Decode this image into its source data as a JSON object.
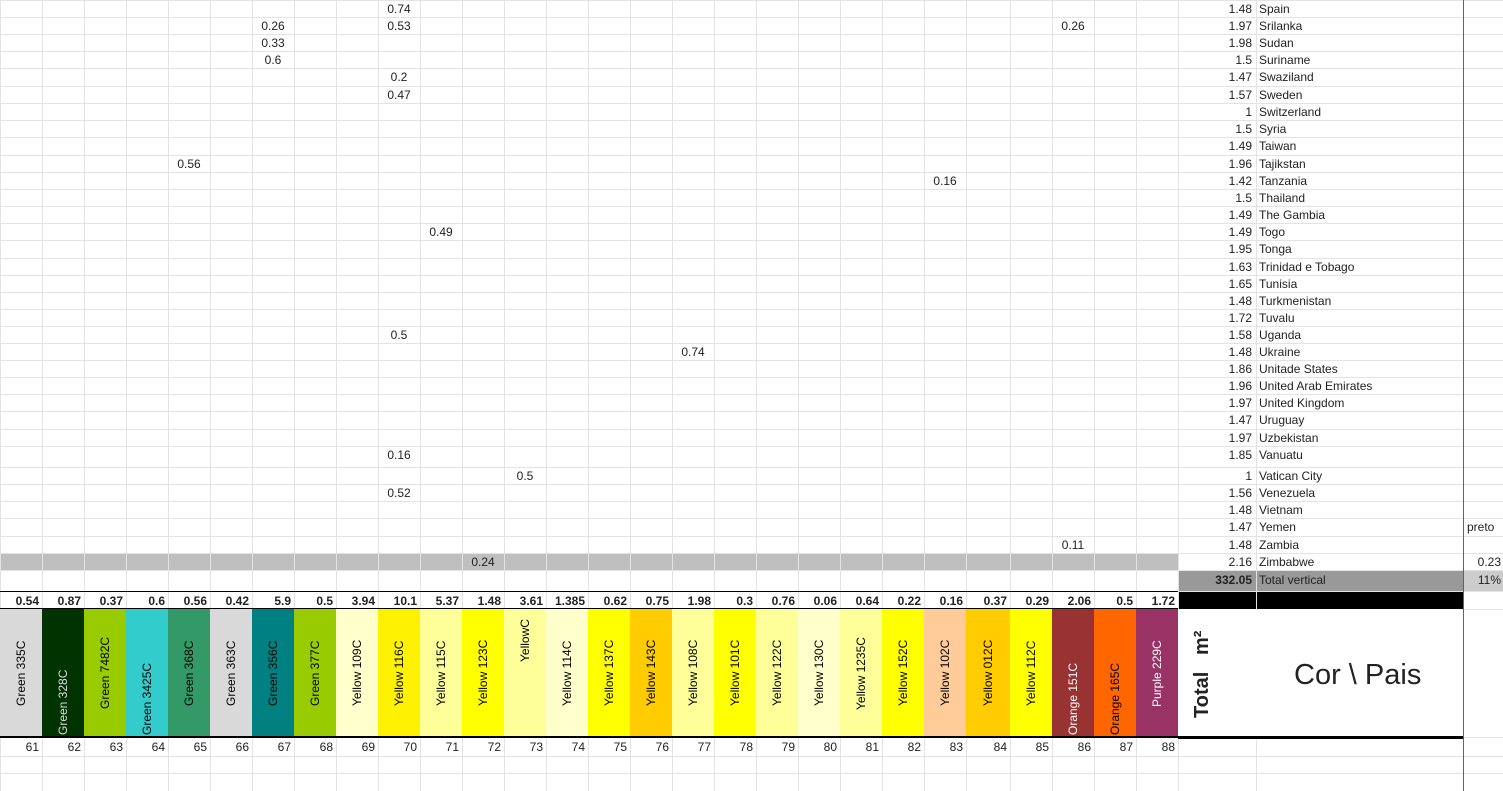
{
  "col_bounds": [
    0,
    42,
    84,
    126,
    168,
    210,
    252,
    294,
    336,
    378,
    420,
    462,
    504,
    546,
    588,
    630,
    672,
    714,
    756,
    798,
    840,
    882,
    924,
    966,
    1010,
    1052,
    1094,
    1136,
    1178,
    1256,
    1463,
    1503
  ],
  "row_bounds": [
    0,
    17,
    34,
    51,
    68,
    86,
    103,
    120,
    137,
    155,
    172,
    189,
    206,
    223,
    240,
    258,
    275,
    292,
    309,
    326,
    343,
    360,
    377,
    394,
    411,
    429,
    446,
    467,
    484,
    501,
    518,
    536,
    553,
    570,
    591,
    609,
    737,
    756,
    773,
    791
  ],
  "countries": [
    {
      "value": "1.48",
      "name": "Spain"
    },
    {
      "value": "1.97",
      "name": "Srilanka"
    },
    {
      "value": "1.98",
      "name": "Sudan"
    },
    {
      "value": "1.5",
      "name": "Suriname"
    },
    {
      "value": "1.47",
      "name": "Swaziland"
    },
    {
      "value": "1.57",
      "name": "Sweden"
    },
    {
      "value": "1",
      "name": "Switzerland"
    },
    {
      "value": "1.5",
      "name": "Syria"
    },
    {
      "value": "1.49",
      "name": "Taiwan"
    },
    {
      "value": "1.96",
      "name": "Tajikstan"
    },
    {
      "value": "1.42",
      "name": "Tanzania"
    },
    {
      "value": "1.5",
      "name": "Thailand"
    },
    {
      "value": "1.49",
      "name": "The Gambia"
    },
    {
      "value": "1.49",
      "name": "Togo"
    },
    {
      "value": "1.95",
      "name": "Tonga"
    },
    {
      "value": "1.63",
      "name": "Trinidad e Tobago"
    },
    {
      "value": "1.65",
      "name": "Tunisia"
    },
    {
      "value": "1.48",
      "name": "Turkmenistan"
    },
    {
      "value": "1.72",
      "name": "Tuvalu"
    },
    {
      "value": "1.58",
      "name": "Uganda"
    },
    {
      "value": "1.48",
      "name": "Ukraine"
    },
    {
      "value": "1.86",
      "name": "Unitade States"
    },
    {
      "value": "1.96",
      "name": "United Arab Emirates"
    },
    {
      "value": "1.97",
      "name": "United Kingdom"
    },
    {
      "value": "1.47",
      "name": "Uruguay"
    },
    {
      "value": "1.97",
      "name": "Uzbekistan"
    },
    {
      "value": "1.85",
      "name": "Vanuatu"
    },
    {
      "value": "1",
      "name": "Vatican City"
    },
    {
      "value": "1.56",
      "name": "Venezuela"
    },
    {
      "value": "1.48",
      "name": "Vietnam"
    },
    {
      "value": "1.47",
      "name": "Yemen"
    },
    {
      "value": "1.48",
      "name": "Zambia"
    },
    {
      "value": "2.16",
      "name": "Zimbabwe"
    }
  ],
  "scattered": [
    {
      "row": 0,
      "col": 9,
      "text": "0.74"
    },
    {
      "row": 1,
      "col": 6,
      "text": "0.26"
    },
    {
      "row": 1,
      "col": 9,
      "text": "0.53"
    },
    {
      "row": 1,
      "col": 25,
      "text": "0.26"
    },
    {
      "row": 2,
      "col": 6,
      "text": "0.33"
    },
    {
      "row": 3,
      "col": 6,
      "text": "0.6"
    },
    {
      "row": 4,
      "col": 9,
      "text": "0.2"
    },
    {
      "row": 5,
      "col": 9,
      "text": "0.47"
    },
    {
      "row": 9,
      "col": 4,
      "text": "0.56"
    },
    {
      "row": 10,
      "col": 22,
      "text": "0.16"
    },
    {
      "row": 13,
      "col": 10,
      "text": "0.49"
    },
    {
      "row": 19,
      "col": 9,
      "text": "0.5"
    },
    {
      "row": 20,
      "col": 16,
      "text": "0.74"
    },
    {
      "row": 26,
      "col": 9,
      "text": "0.16"
    },
    {
      "row": 27,
      "col": 12,
      "text": "0.5"
    },
    {
      "row": 28,
      "col": 9,
      "text": "0.52"
    },
    {
      "row": 31,
      "col": 25,
      "text": "0.11"
    },
    {
      "row": 32,
      "col": 11,
      "text": "0.24"
    }
  ],
  "yemen_extra": "preto",
  "zimbabwe_extra": "0.23",
  "total_vertical": {
    "value": "332.05",
    "label": "Total vertical",
    "percent": "11%"
  },
  "totals_row": [
    "0.54",
    "0.87",
    "0.37",
    "0.6",
    "0.56",
    "0.42",
    "5.9",
    "0.5",
    "3.94",
    "10.1",
    "5.37",
    "1.48",
    "3.61",
    "1.385",
    "0.62",
    "0.75",
    "1.98",
    "0.3",
    "0.76",
    "0.06",
    "0.64",
    "0.22",
    "0.16",
    "0.37",
    "0.29",
    "2.06",
    "0.5",
    "1.72"
  ],
  "color_columns": [
    {
      "label": "Green 335C",
      "bg": "#d9d9d9",
      "fg": "#000000",
      "pos": "mid"
    },
    {
      "label": "Green 328C",
      "bg": "#003300",
      "fg": "#dddddd",
      "pos": "bottom"
    },
    {
      "label": "Green 7482C",
      "bg": "#99cc00",
      "fg": "#000000",
      "pos": "mid"
    },
    {
      "label": "Green 3425C",
      "bg": "#33cccc",
      "fg": "#000000",
      "pos": "bottom"
    },
    {
      "label": "Green 368C",
      "bg": "#339966",
      "fg": "#000000",
      "pos": "mid"
    },
    {
      "label": "Green 363C",
      "bg": "#d9d9d9",
      "fg": "#000000",
      "pos": "mid"
    },
    {
      "label": "Green 356C",
      "bg": "#008080",
      "fg": "#000000",
      "pos": "mid"
    },
    {
      "label": "Green 377C",
      "bg": "#99cc00",
      "fg": "#000000",
      "pos": "mid"
    },
    {
      "label": "Yellow 109C",
      "bg": "#ffffcc",
      "fg": "#000000",
      "pos": "mid"
    },
    {
      "label": "Yellow 116C",
      "bg": "#fff200",
      "fg": "#000000",
      "pos": "mid"
    },
    {
      "label": "Yellow 115C",
      "bg": "#ffff99",
      "fg": "#000000",
      "pos": "mid"
    },
    {
      "label": "Yellow 123C",
      "bg": "#ffff00",
      "fg": "#000000",
      "pos": "mid"
    },
    {
      "label": "YellowC",
      "bg": "#ffff99",
      "fg": "#000000",
      "pos": "top"
    },
    {
      "label": "Yellow 114C",
      "bg": "#ffffcc",
      "fg": "#000000",
      "pos": "mid"
    },
    {
      "label": "Yellow 137C",
      "bg": "#ffff00",
      "fg": "#000000",
      "pos": "mid"
    },
    {
      "label": "Yellow 143C",
      "bg": "#ffcc00",
      "fg": "#000000",
      "pos": "mid"
    },
    {
      "label": "Yellow 108C",
      "bg": "#ffff99",
      "fg": "#000000",
      "pos": "mid"
    },
    {
      "label": "Yellow 101C",
      "bg": "#ffff00",
      "fg": "#000000",
      "pos": "mid"
    },
    {
      "label": "Yellow 122C",
      "bg": "#ffff99",
      "fg": "#000000",
      "pos": "mid"
    },
    {
      "label": "Yellow 130C",
      "bg": "#ffffcc",
      "fg": "#000000",
      "pos": "mid"
    },
    {
      "label": "Yellow 1235C",
      "bg": "#ffff99",
      "fg": "#000000",
      "pos": "mid"
    },
    {
      "label": "Yellow 152C",
      "bg": "#ffff00",
      "fg": "#000000",
      "pos": "mid"
    },
    {
      "label": "Yellow 102C",
      "bg": "#ffcc99",
      "fg": "#000000",
      "pos": "mid"
    },
    {
      "label": "Yellow 012C",
      "bg": "#ffcc00",
      "fg": "#000000",
      "pos": "mid"
    },
    {
      "label": "Yellow 112C",
      "bg": "#ffff00",
      "fg": "#000000",
      "pos": "mid"
    },
    {
      "label": "Orange 151C",
      "bg": "#993333",
      "fg": "#ffffff",
      "pos": "bottom"
    },
    {
      "label": "Orange 165C",
      "bg": "#ff6600",
      "fg": "#000000",
      "pos": "bottom"
    },
    {
      "label": "Purple 229C",
      "bg": "#993366",
      "fg": "#ffffff",
      "pos": "mid"
    }
  ],
  "header": {
    "total_label": "Total",
    "m2_label": "m²",
    "cor_pais": "Cor  \\ Pais"
  },
  "column_numbers": [
    "61",
    "62",
    "63",
    "64",
    "65",
    "66",
    "67",
    "68",
    "69",
    "70",
    "71",
    "72",
    "73",
    "74",
    "75",
    "76",
    "77",
    "78",
    "79",
    "80",
    "81",
    "82",
    "83",
    "84",
    "85",
    "86",
    "87",
    "88"
  ]
}
